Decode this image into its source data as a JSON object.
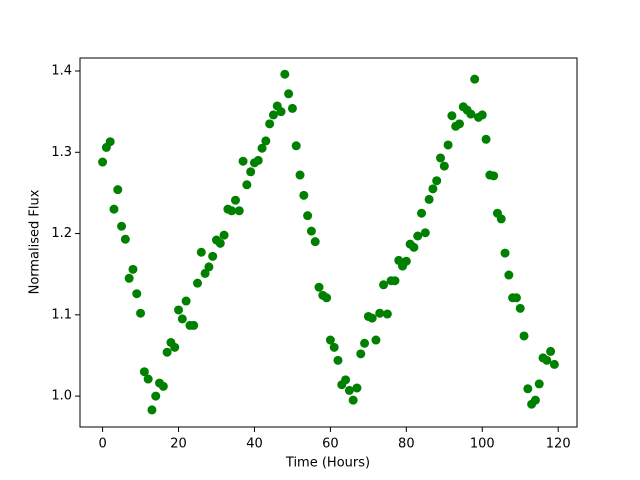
{
  "chart_data": {
    "type": "scatter",
    "x_label": "Time (Hours)",
    "y_label": "Normalised Flux",
    "color": "green",
    "x": [
      0,
      1,
      2,
      3,
      4,
      5,
      6,
      7,
      8,
      9,
      10,
      11,
      12,
      13,
      14,
      15,
      16,
      17,
      18,
      19,
      20,
      21,
      22,
      23,
      24,
      25,
      26,
      27,
      28,
      29,
      30,
      31,
      32,
      33,
      34,
      35,
      36,
      37,
      38,
      39,
      40,
      41,
      42,
      43,
      44,
      45,
      46,
      47,
      48,
      49,
      50,
      51,
      52,
      53,
      54,
      55,
      56,
      57,
      58,
      59,
      60,
      61,
      62,
      63,
      64,
      65,
      66,
      67,
      68,
      69,
      70,
      71,
      72,
      73,
      74,
      75,
      76,
      77,
      78,
      79,
      80,
      81,
      82,
      83,
      84,
      85,
      86,
      87,
      88,
      89,
      90,
      91,
      92,
      93,
      94,
      95,
      96,
      97,
      98,
      99,
      100,
      101,
      102,
      103,
      104,
      105,
      106,
      107,
      108,
      109,
      110,
      111,
      112,
      113,
      114,
      115,
      116,
      117,
      118,
      119
    ],
    "values": [
      1.288,
      1.306,
      1.313,
      1.23,
      1.254,
      1.209,
      1.193,
      1.145,
      1.156,
      1.126,
      1.102,
      1.03,
      1.021,
      0.983,
      1.0,
      1.016,
      1.012,
      1.054,
      1.066,
      1.06,
      1.106,
      1.095,
      1.117,
      1.087,
      1.087,
      1.139,
      1.177,
      1.151,
      1.159,
      1.172,
      1.192,
      1.188,
      1.198,
      1.23,
      1.228,
      1.241,
      1.228,
      1.289,
      1.26,
      1.276,
      1.287,
      1.29,
      1.305,
      1.314,
      1.335,
      1.346,
      1.357,
      1.35,
      1.396,
      1.372,
      1.354,
      1.308,
      1.272,
      1.247,
      1.222,
      1.203,
      1.19,
      1.134,
      1.124,
      1.121,
      1.069,
      1.06,
      1.044,
      1.014,
      1.02,
      1.007,
      0.995,
      1.01,
      1.052,
      1.065,
      1.098,
      1.096,
      1.069,
      1.102,
      1.137,
      1.101,
      1.142,
      1.142,
      1.167,
      1.16,
      1.166,
      1.187,
      1.183,
      1.197,
      1.225,
      1.201,
      1.242,
      1.255,
      1.265,
      1.293,
      1.283,
      1.309,
      1.345,
      1.332,
      1.335,
      1.356,
      1.352,
      1.347,
      1.39,
      1.343,
      1.346,
      1.316,
      1.272,
      1.271,
      1.225,
      1.218,
      1.176,
      1.149,
      1.121,
      1.121,
      1.108,
      1.074,
      1.009,
      0.99,
      0.995,
      1.015,
      1.047,
      1.044,
      1.055,
      1.039
    ],
    "xlim": [
      -5.95,
      124.95
    ],
    "xticks": [
      0,
      20,
      40,
      60,
      80,
      100,
      120
    ],
    "ylim": [
      0.962,
      1.416
    ],
    "yticks": [
      {
        "value": 1,
        "label": "1.0"
      },
      1.1,
      1.2,
      1.3,
      1.4
    ]
  }
}
